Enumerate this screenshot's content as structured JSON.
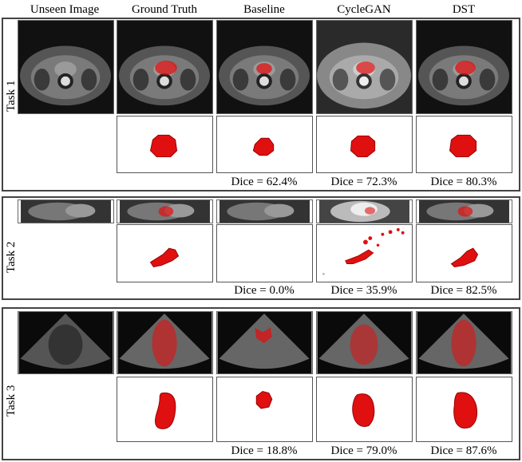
{
  "columns": {
    "unseen": "Unseen Image",
    "gt": "Ground Truth",
    "baseline": "Baseline",
    "cyclegan": "CycleGAN",
    "dst": "DST"
  },
  "tasks": [
    {
      "label": "Task 1",
      "dice": {
        "baseline": "Dice = 62.4%",
        "cyclegan": "Dice = 72.3%",
        "dst": "Dice = 80.3%"
      }
    },
    {
      "label": "Task 2",
      "dice": {
        "baseline": "Dice = 0.0%",
        "cyclegan": "Dice = 35.9%",
        "dst": "Dice = 82.5%"
      }
    },
    {
      "label": "Task 3",
      "dice": {
        "baseline": "Dice = 18.8%",
        "cyclegan": "Dice = 79.0%",
        "dst": "Dice = 87.6%"
      }
    }
  ],
  "colors": {
    "segmentation": "#e01010",
    "border": "#444444"
  }
}
